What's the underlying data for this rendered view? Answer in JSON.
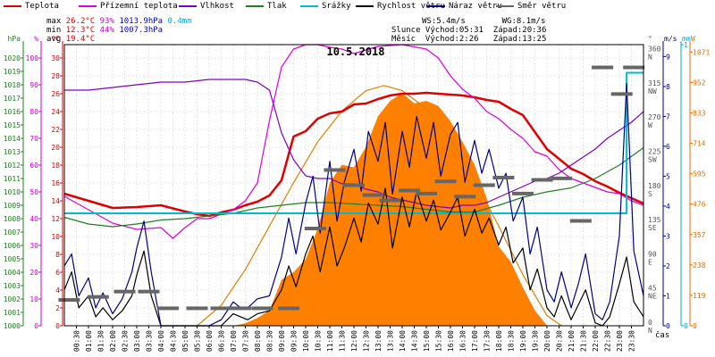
{
  "legend": [
    {
      "label": "Teplota",
      "color": "#e00000"
    },
    {
      "label": "Přízemní teplota",
      "color": "#dd00dd"
    },
    {
      "label": "Vlhkost",
      "color": "#8000c0"
    },
    {
      "label": "Tlak",
      "color": "#208020"
    },
    {
      "label": "Srážky",
      "color": "#00bbcc"
    },
    {
      "label": "Rychlost větru",
      "color": "#000000"
    },
    {
      "label": "Náraz větru",
      "color": "#000080"
    },
    {
      "label": "Směr větru",
      "color": "#666666"
    }
  ],
  "stats": {
    "max_label": "max",
    "max_temp": "26.2°C",
    "max_hum": "93%",
    "max_press": "1013.9hPa",
    "rain": "0.4mm",
    "min_label": "min",
    "min_temp": "12.3°C",
    "min_hum": "44%",
    "min_press": "1007.3hPa",
    "avg_label": "avg",
    "avg_temp": "19.4°C",
    "ws": "WS:5.4m/s",
    "wg": "WG:8.1m/s",
    "sun": "Slunce Východ:05:31  Západ:20:36",
    "moon": "Měsíc  Východ:2:26   Západ:13:25"
  },
  "chart_data": {
    "type": "line",
    "title": "10.5.2018",
    "x_label": "čas",
    "x_ticks": [
      "00:30",
      "01:00",
      "01:30",
      "02:00",
      "02:30",
      "03:00",
      "03:30",
      "04:00",
      "04:30",
      "05:00",
      "05:30",
      "06:00",
      "06:30",
      "07:00",
      "07:30",
      "08:00",
      "08:30",
      "09:00",
      "09:30",
      "10:00",
      "10:30",
      "11:00",
      "11:30",
      "12:00",
      "12:30",
      "13:00",
      "13:30",
      "14:00",
      "14:30",
      "15:00",
      "15:30",
      "16:00",
      "16:30",
      "17:00",
      "17:30",
      "18:00",
      "18:30",
      "19:00",
      "19:30",
      "20:00",
      "20:30",
      "21:00",
      "21:30",
      "22:00",
      "22:30",
      "23:00",
      "23:30"
    ],
    "axes": {
      "pressure": {
        "unit": "hPa",
        "ticks": [
          "1000",
          "1001",
          "1002",
          "1003",
          "1004",
          "1005",
          "1006",
          "1007",
          "1008",
          "1009",
          "1010",
          "1011",
          "1012",
          "1013",
          "1014",
          "1015",
          "1016",
          "1017",
          "1018",
          "1019",
          "1020"
        ],
        "range": [
          1000,
          1021
        ]
      },
      "humidity": {
        "unit": "%",
        "ticks": [
          "0",
          "10",
          "20",
          "30",
          "40",
          "50",
          "60",
          "70",
          "80",
          "90",
          "100"
        ],
        "range": [
          0,
          105
        ]
      },
      "temperature": {
        "unit": "°C",
        "ticks": [
          "0",
          "2",
          "4",
          "6",
          "8",
          "10",
          "12",
          "14",
          "16",
          "18",
          "20",
          "22",
          "24",
          "26",
          "28",
          "30"
        ],
        "range": [
          0,
          31.5
        ]
      },
      "direction": {
        "unit": "°",
        "ticks": [
          "0 N",
          "45 NE",
          "90 E",
          "135 SE",
          "180 S",
          "225 SW",
          "270 W",
          "315 NW",
          "360 N"
        ],
        "range": [
          0,
          370
        ]
      },
      "wind": {
        "unit": "m/s",
        "ticks": [
          "0",
          "1",
          "2",
          "3",
          "4",
          "5",
          "6",
          "7",
          "8",
          "9"
        ],
        "range": [
          0,
          9.4
        ]
      },
      "rain": {
        "unit": "mm",
        "ticks": [
          "0",
          "1"
        ],
        "range": [
          0,
          1
        ]
      },
      "solar": {
        "unit": "W",
        "ticks": [
          "0",
          "119",
          "238",
          "357",
          "476",
          "595",
          "714",
          "833",
          "952",
          "1071"
        ],
        "range": [
          0,
          1100
        ]
      }
    },
    "series": [
      {
        "name": "Teplota",
        "axis": "temperature",
        "color": "#e00000",
        "x": [
          0,
          1,
          2,
          3,
          4,
          5,
          5.5,
          6,
          6.5,
          7,
          7.5,
          8,
          8.5,
          9,
          9.5,
          10,
          10.5,
          11,
          11.5,
          12,
          12.5,
          13,
          13.5,
          14,
          14.5,
          15,
          15.5,
          16,
          16.5,
          17,
          17.5,
          18,
          18.5,
          19,
          19.5,
          20,
          20.5,
          21,
          21.5,
          22,
          22.5,
          23,
          23.5,
          24
        ],
        "values": [
          14.8,
          14.0,
          13.2,
          13.3,
          13.5,
          12.8,
          12.5,
          12.3,
          12.7,
          13.0,
          13.5,
          13.9,
          14.6,
          16.3,
          21.2,
          21.8,
          23.2,
          23.8,
          24.0,
          24.8,
          24.9,
          25.4,
          25.8,
          26.0,
          26.0,
          26.1,
          26.0,
          25.9,
          25.8,
          25.6,
          25.3,
          25.1,
          24.3,
          23.6,
          21.7,
          19.8,
          18.7,
          17.6,
          17.0,
          16.2,
          15.6,
          14.9,
          14.3,
          13.7
        ]
      },
      {
        "name": "Přízemní teplota",
        "axis": "temperature",
        "color": "#dd00dd",
        "x": [
          0,
          1,
          2,
          3,
          4,
          4.5,
          5,
          5.5,
          6,
          6.5,
          7,
          7.5,
          8,
          8.5,
          9,
          9.5,
          10,
          10.5,
          11,
          11.5,
          12,
          13,
          14,
          15,
          15.5,
          16,
          16.5,
          17,
          17.5,
          18,
          18.5,
          19,
          19.5,
          20,
          20.5,
          21,
          21.5,
          22,
          22.5,
          23,
          23.5,
          24
        ],
        "values": [
          14.5,
          13.0,
          11.5,
          10.8,
          11.0,
          9.8,
          11.0,
          12.0,
          12.0,
          12.5,
          13.0,
          14.0,
          16.0,
          23.0,
          29.0,
          31.0,
          31.5,
          31.5,
          31.2,
          31.0,
          30.5,
          31.3,
          31.5,
          31.0,
          30.0,
          28.0,
          26.5,
          25.5,
          24.0,
          23.2,
          22.0,
          21.0,
          19.5,
          19.0,
          17.5,
          16.5,
          16.0,
          15.5,
          15.0,
          14.8,
          14.0,
          13.5
        ]
      },
      {
        "name": "Vlhkost",
        "axis": "humidity",
        "color": "#8000c0",
        "x": [
          0,
          1,
          2,
          3,
          4,
          5,
          6,
          6.5,
          7,
          7.5,
          8,
          8.5,
          9,
          9.5,
          10,
          10.5,
          11,
          11.5,
          12,
          12.5,
          13,
          13.5,
          14,
          15,
          16,
          16.5,
          17,
          17.5,
          18,
          18.5,
          19,
          19.5,
          20,
          20.5,
          21,
          21.5,
          22,
          22.5,
          23,
          23.5,
          24
        ],
        "values": [
          88,
          88,
          89,
          90,
          91,
          91,
          92,
          92,
          92,
          92,
          91,
          88,
          72,
          62,
          56,
          55,
          55,
          53,
          53,
          51,
          50,
          48,
          47,
          45,
          44,
          45,
          45,
          46,
          48,
          50,
          52,
          54,
          55,
          57,
          60,
          63,
          66,
          70,
          73,
          76,
          80
        ]
      },
      {
        "name": "Tlak",
        "axis": "pressure",
        "color": "#208020",
        "x": [
          0,
          1,
          2,
          3,
          4,
          5,
          6,
          7,
          8,
          9,
          10,
          11,
          12,
          13,
          14,
          15,
          16,
          17,
          18,
          19,
          20,
          21,
          22,
          23,
          24
        ],
        "values": [
          1008.1,
          1007.6,
          1007.4,
          1007.6,
          1007.9,
          1008.0,
          1008.2,
          1008.4,
          1008.8,
          1009.0,
          1009.2,
          1009.2,
          1009.1,
          1009.0,
          1008.9,
          1008.7,
          1008.5,
          1008.5,
          1009.0,
          1009.6,
          1010.0,
          1010.3,
          1011.0,
          1012.0,
          1013.3
        ]
      },
      {
        "name": "Srážky",
        "axis": "rain",
        "color": "#00bbcc",
        "x": [
          0,
          23.3,
          23.3,
          24
        ],
        "values": [
          0.4,
          0.4,
          0.9,
          0.9
        ]
      },
      {
        "name": "Rychlost větru",
        "axis": "wind",
        "color": "#000000",
        "x": [
          0,
          0.3,
          0.6,
          1,
          1.3,
          1.6,
          2,
          2.4,
          2.8,
          3,
          3.3,
          3.6,
          4,
          4.5,
          5,
          5.5,
          6,
          6.5,
          7,
          7.3,
          7.6,
          8,
          8.5,
          9,
          9.3,
          9.6,
          10,
          10.3,
          10.6,
          11,
          11.3,
          11.6,
          12,
          12.3,
          12.6,
          13,
          13.3,
          13.6,
          14,
          14.3,
          14.6,
          15,
          15.3,
          15.6,
          16,
          16.3,
          16.6,
          17,
          17.3,
          17.6,
          18,
          18.3,
          18.6,
          19,
          19.3,
          19.6,
          20,
          20.3,
          20.6,
          21,
          21.3,
          21.6,
          22,
          22.3,
          22.6,
          23,
          23.3,
          23.6,
          24
        ],
        "values": [
          1.2,
          1.8,
          0.6,
          1.0,
          0.3,
          0.6,
          0.2,
          0.5,
          1.0,
          1.7,
          2.5,
          1.0,
          0.0,
          0.0,
          0.0,
          0.0,
          0.0,
          0.0,
          0.4,
          0.3,
          0.2,
          0.4,
          0.5,
          1.2,
          2.0,
          1.3,
          2.4,
          3.0,
          1.8,
          3.3,
          2.0,
          2.6,
          3.6,
          2.8,
          4.1,
          3.4,
          4.6,
          2.6,
          4.3,
          3.3,
          4.5,
          3.5,
          4.2,
          3.2,
          3.8,
          4.3,
          3.0,
          3.9,
          3.1,
          3.6,
          2.7,
          3.3,
          2.1,
          2.6,
          1.2,
          1.9,
          0.6,
          0.3,
          1.0,
          0.2,
          0.7,
          1.2,
          0.1,
          0.0,
          0.3,
          1.4,
          2.3,
          0.8,
          0.3
        ]
      },
      {
        "name": "Náraz větru",
        "axis": "wind",
        "color": "#000080",
        "x": [
          0,
          0.3,
          0.6,
          1,
          1.3,
          1.6,
          2,
          2.4,
          2.8,
          3,
          3.3,
          3.6,
          4,
          4.5,
          5,
          5.5,
          6,
          6.5,
          7,
          7.3,
          7.6,
          8,
          8.5,
          9,
          9.3,
          9.6,
          10,
          10.3,
          10.6,
          11,
          11.3,
          11.6,
          12,
          12.3,
          12.6,
          13,
          13.3,
          13.6,
          14,
          14.3,
          14.6,
          15,
          15.3,
          15.6,
          16,
          16.3,
          16.6,
          17,
          17.3,
          17.6,
          18,
          18.3,
          18.6,
          19,
          19.3,
          19.6,
          20,
          20.3,
          20.6,
          21,
          21.3,
          21.6,
          22,
          22.3,
          22.6,
          23,
          23.3,
          23.6,
          24
        ],
        "values": [
          2.0,
          2.4,
          1.0,
          1.6,
          0.6,
          1.1,
          0.4,
          0.9,
          1.8,
          2.6,
          3.5,
          1.8,
          0.0,
          0.0,
          0.0,
          0.0,
          0.0,
          0.2,
          0.8,
          0.6,
          0.6,
          0.9,
          1.0,
          2.3,
          3.6,
          2.4,
          4.1,
          5.0,
          3.1,
          5.5,
          3.5,
          4.8,
          5.9,
          4.5,
          6.5,
          5.5,
          6.8,
          4.4,
          6.5,
          5.3,
          7.0,
          5.6,
          6.8,
          5.0,
          6.4,
          6.8,
          4.8,
          6.2,
          5.1,
          5.9,
          4.6,
          5.1,
          3.5,
          4.3,
          2.4,
          3.3,
          1.2,
          0.8,
          1.8,
          0.6,
          1.4,
          2.4,
          0.4,
          0.2,
          0.8,
          3.0,
          8.1,
          2.5,
          1.0
        ]
      },
      {
        "name": "Směr větru",
        "axis": "direction",
        "color": "#666666",
        "x": [
          0.2,
          1.4,
          2.5,
          3.5,
          4.3,
          5.5,
          6.5,
          7.3,
          8.2,
          9.3,
          10.4,
          11.2,
          12.0,
          12.8,
          13.5,
          14.3,
          15.0,
          15.8,
          16.6,
          17.4,
          18.2,
          19.0,
          19.8,
          20.6,
          21.4,
          22.3,
          23.1,
          23.6
        ],
        "values": [
          34,
          38,
          45,
          45,
          23,
          23,
          23,
          23,
          23,
          23,
          128,
          205,
          185,
          172,
          165,
          178,
          174,
          190,
          170,
          185,
          195,
          174,
          192,
          194,
          138,
          340,
          305,
          340
        ]
      }
    ],
    "solar": {
      "name": "Sluneční záření",
      "axis": "solar",
      "color": "#ff8000",
      "x": [
        7.0,
        7.5,
        8.0,
        8.5,
        9.0,
        9.5,
        10.0,
        10.5,
        11.0,
        11.5,
        12.0,
        12.5,
        13.0,
        13.5,
        14.0,
        14.5,
        15.0,
        15.5,
        16.0,
        16.5,
        17.0,
        17.5,
        18.0,
        18.5,
        19.0,
        19.5,
        20.0
      ],
      "values": [
        0,
        10,
        30,
        60,
        180,
        210,
        260,
        380,
        560,
        630,
        620,
        700,
        820,
        880,
        910,
        870,
        880,
        860,
        800,
        720,
        630,
        500,
        310,
        250,
        150,
        60,
        0
      ]
    },
    "theoretical_solar": {
      "color": "#e08000",
      "x": [
        5.5,
        6.5,
        7.5,
        8.5,
        9.5,
        10.5,
        11.5,
        12.5,
        13.25,
        14,
        15,
        16,
        17,
        18,
        19,
        20,
        20.6
      ],
      "values": [
        0,
        80,
        220,
        390,
        560,
        720,
        840,
        920,
        940,
        920,
        850,
        730,
        570,
        390,
        200,
        40,
        0
      ]
    }
  }
}
